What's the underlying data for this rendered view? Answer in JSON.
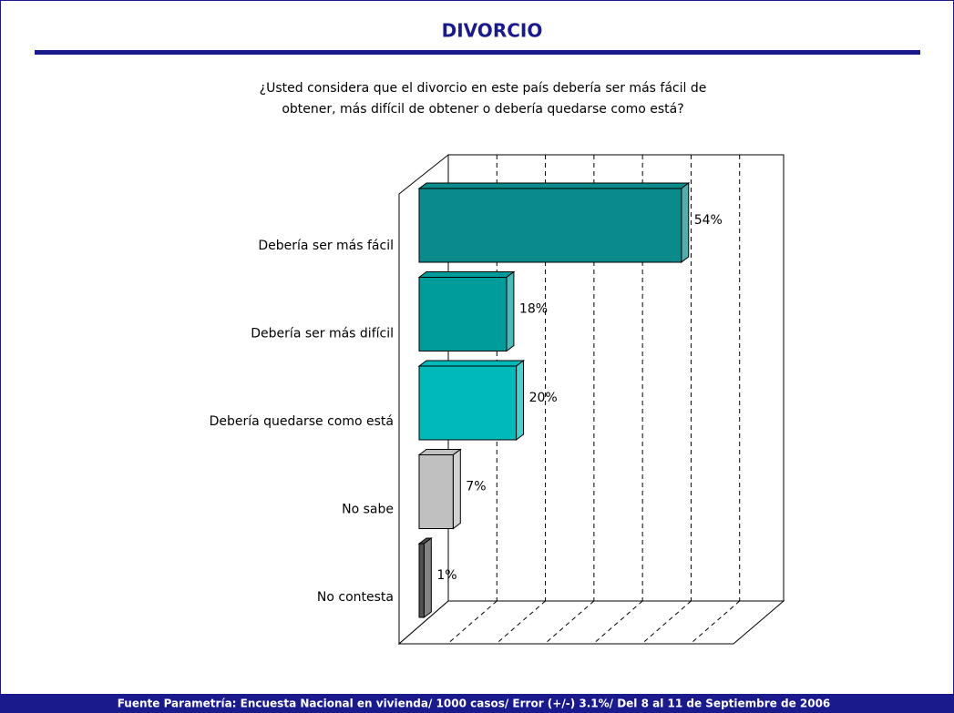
{
  "chart_data": {
    "type": "bar3d_horizontal",
    "title": "DIVORCIO",
    "subtitle": [
      "¿Usted considera que el divorcio en este país debería ser más fácil de",
      "obtener, más difícil de obtener o debería quedarse como está?"
    ],
    "categories": [
      "Debería ser más fácil",
      "Debería ser más difícil",
      "Debería quedarse como está",
      "No sabe",
      "No contesta"
    ],
    "values": [
      54,
      18,
      20,
      7,
      1
    ],
    "value_labels": [
      "54%",
      "18%",
      "20%",
      "7%",
      "1%"
    ],
    "colors": [
      "#0a8a8a",
      "#009c9c",
      "#00baba",
      "#c0c0c0",
      "#505050"
    ],
    "xlim": [
      0,
      70
    ],
    "xticks": [
      10,
      20,
      30,
      40,
      50,
      60
    ],
    "grid": true,
    "footnote": "Fuente Parametría: Encuesta Nacional en vivienda/ 1000 casos/ Error (+/-) 3.1%/ Del 8 al 11 de Septiembre de 2006"
  }
}
